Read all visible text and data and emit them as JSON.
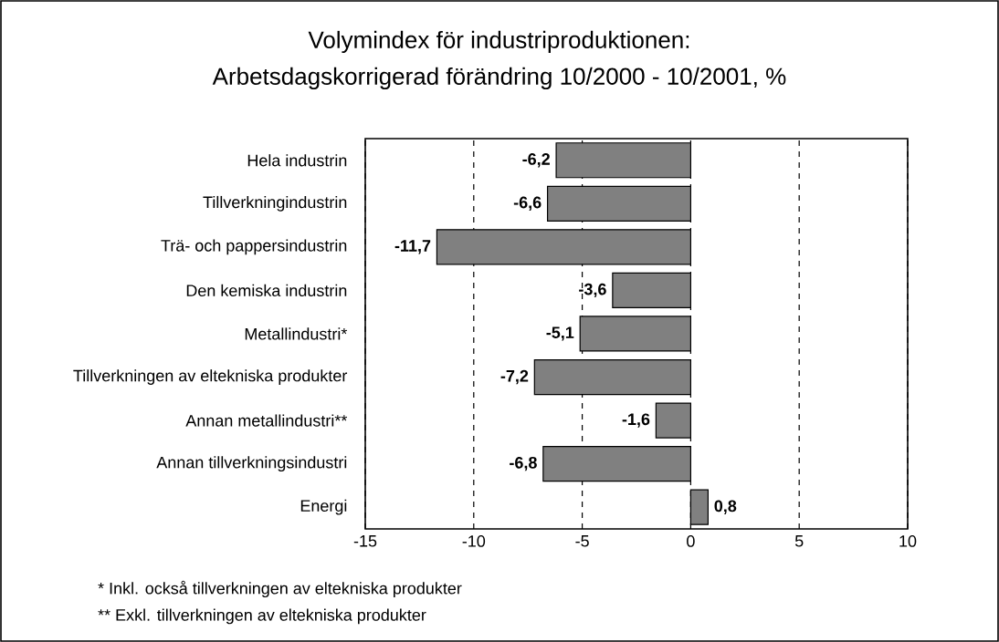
{
  "chart_data": {
    "type": "bar",
    "orientation": "horizontal",
    "title": "Volymindex för industriproduktionen:",
    "subtitle": "Arbetsdagskorrigerad förändring 10/2000 - 10/2001, %",
    "categories": [
      "Hela industrin",
      "Tillverkningindustrin",
      "Trä- och pappersindustrin",
      "Den kemiska industrin",
      "Metallindustri*",
      "Tillverkningen av eltekniska produkter",
      "Annan metallindustri**",
      "Annan tillverkningsindustri",
      "Energi"
    ],
    "values": [
      -6.2,
      -6.6,
      -11.7,
      -3.6,
      -5.1,
      -7.2,
      -1.6,
      -6.8,
      0.8
    ],
    "value_labels": [
      "-6,2",
      "-6,6",
      "-11,7",
      "-3,6",
      "-5,1",
      "-7,2",
      "-1,6",
      "-6,8",
      "0,8"
    ],
    "color": "#808080",
    "xlim": [
      -15,
      10
    ],
    "xticks": [
      -15,
      -10,
      -5,
      0,
      5,
      10
    ],
    "grid": "x",
    "annotations": [
      "* Inkl. också tillverkningen av eltekniska produkter",
      "** Exkl. tillverkningen av eltekniska produkter"
    ]
  }
}
